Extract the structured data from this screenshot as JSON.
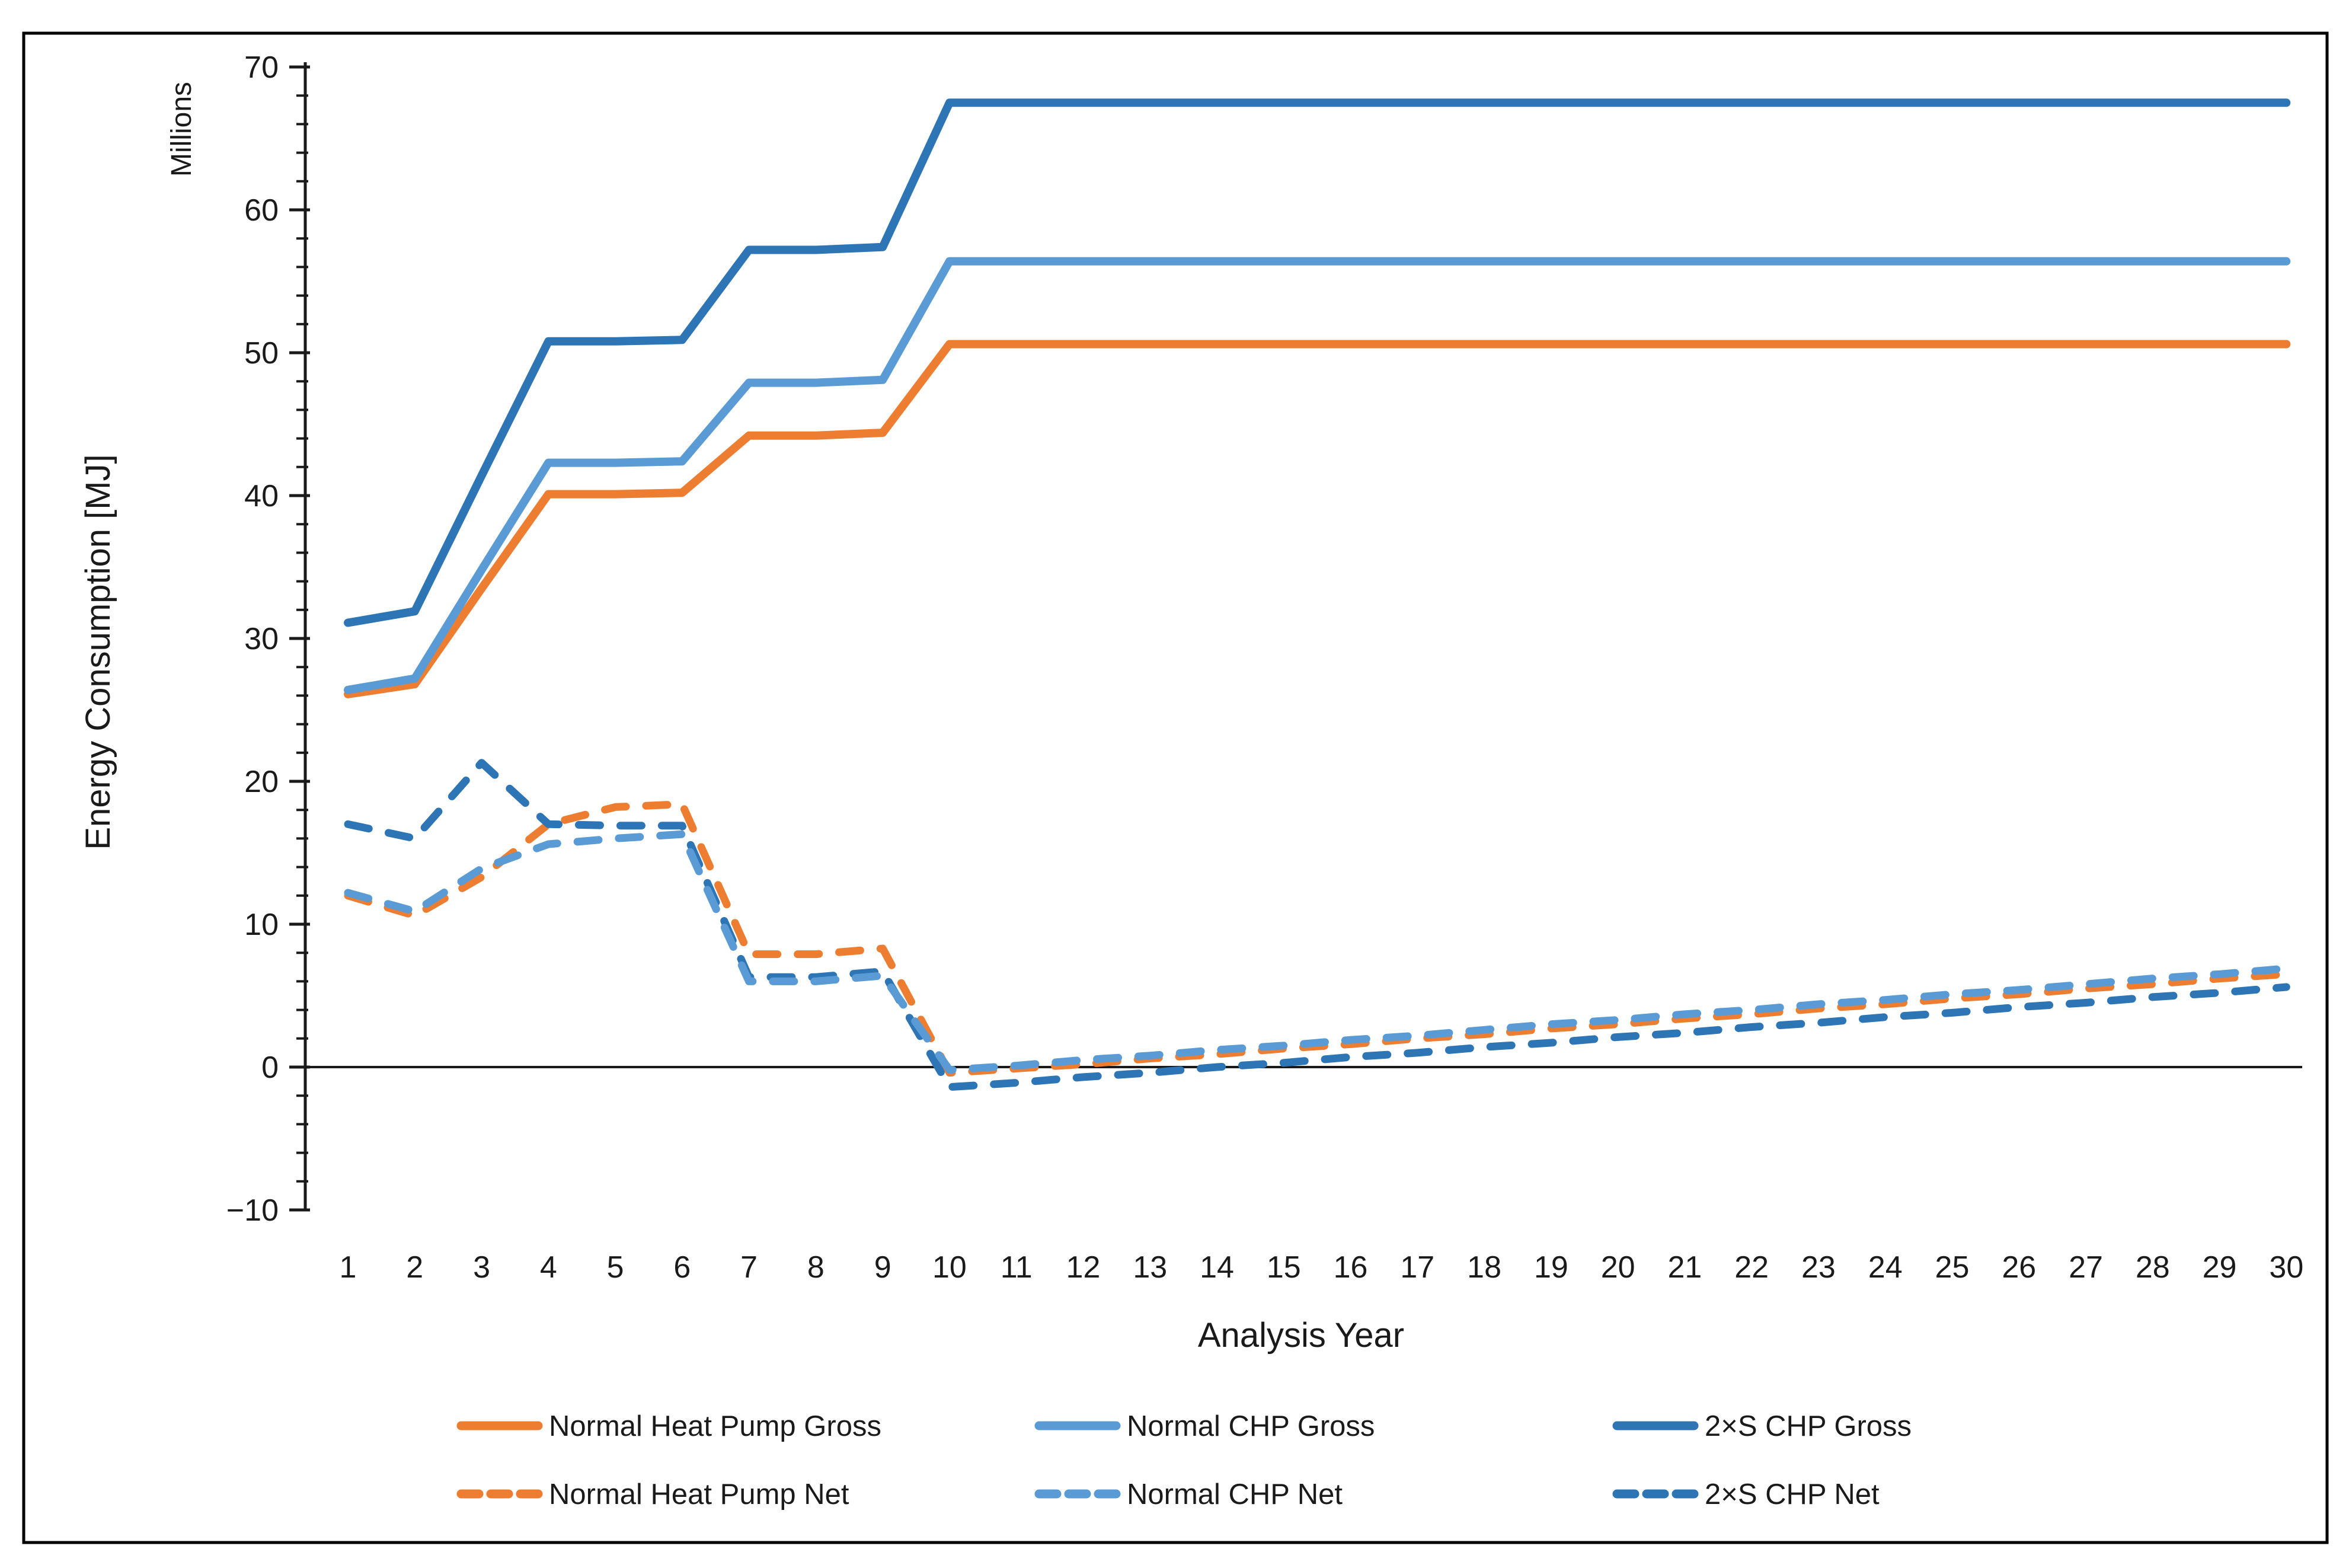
{
  "page": {
    "background": "#ffffff",
    "frame_border_color": "#000000",
    "axis_color": "#1a1a1a"
  },
  "chart_data": {
    "type": "line",
    "title": "",
    "ylabel": "Energy Consumption [MJ]",
    "units_label": "Millions",
    "xlabel": "Analysis Year",
    "ylim": [
      -10,
      70
    ],
    "y_major_ticks": [
      70,
      60,
      50,
      40,
      30,
      20,
      10,
      0,
      -10
    ],
    "y_tick_labels": [
      "70",
      "60",
      "50",
      "40",
      "30",
      "20",
      "10",
      "0",
      "−10"
    ],
    "y_minor_step": 2,
    "grid": "off",
    "zero_line": true,
    "legend_position": "bottom",
    "legend_rows": 2,
    "x": [
      1,
      2,
      3,
      4,
      5,
      6,
      7,
      8,
      9,
      10,
      11,
      12,
      13,
      14,
      15,
      16,
      17,
      18,
      19,
      20,
      21,
      22,
      23,
      24,
      25,
      26,
      27,
      28,
      29,
      30
    ],
    "x_tick_labels": [
      "1",
      "2",
      "3",
      "4",
      "5",
      "6",
      "7",
      "8",
      "9",
      "10",
      "11",
      "12",
      "13",
      "14",
      "15",
      "16",
      "17",
      "18",
      "19",
      "20",
      "21",
      "22",
      "23",
      "24",
      "25",
      "26",
      "27",
      "28",
      "29",
      "30"
    ],
    "series": [
      {
        "name": "Normal Heat Pump Gross",
        "color": "#ED7D31",
        "style": "solid",
        "values": [
          26.1,
          26.8,
          33.5,
          40.1,
          40.1,
          40.2,
          44.2,
          44.2,
          44.4,
          50.6,
          50.6,
          50.6,
          50.6,
          50.6,
          50.6,
          50.6,
          50.6,
          50.6,
          50.6,
          50.6,
          50.6,
          50.6,
          50.6,
          50.6,
          50.6,
          50.6,
          50.6,
          50.6,
          50.6,
          50.6
        ]
      },
      {
        "name": "Normal CHP Gross",
        "color": "#5B9BD5",
        "style": "solid",
        "values": [
          26.4,
          27.2,
          34.8,
          42.3,
          42.3,
          42.4,
          47.9,
          47.9,
          48.1,
          56.4,
          56.4,
          56.4,
          56.4,
          56.4,
          56.4,
          56.4,
          56.4,
          56.4,
          56.4,
          56.4,
          56.4,
          56.4,
          56.4,
          56.4,
          56.4,
          56.4,
          56.4,
          56.4,
          56.4,
          56.4
        ]
      },
      {
        "name": "2×S CHP Gross",
        "color": "#2E75B6",
        "style": "solid",
        "values": [
          31.1,
          31.9,
          41.4,
          50.8,
          50.8,
          50.9,
          57.2,
          57.2,
          57.4,
          67.5,
          67.5,
          67.5,
          67.5,
          67.5,
          67.5,
          67.5,
          67.5,
          67.5,
          67.5,
          67.5,
          67.5,
          67.5,
          67.5,
          67.5,
          67.5,
          67.5,
          67.5,
          67.5,
          67.5,
          67.5
        ]
      },
      {
        "name": "Normal Heat Pump Net",
        "color": "#ED7D31",
        "style": "dashed",
        "values": [
          12.0,
          10.6,
          13.3,
          17.0,
          18.2,
          18.4,
          7.9,
          7.9,
          8.3,
          -0.4,
          -0.1,
          0.2,
          0.6,
          0.9,
          1.3,
          1.6,
          2.0,
          2.3,
          2.7,
          3.0,
          3.4,
          3.7,
          4.1,
          4.4,
          4.8,
          5.1,
          5.5,
          5.8,
          6.2,
          6.5
        ]
      },
      {
        "name": "Normal CHP Net",
        "color": "#5B9BD5",
        "style": "dashed",
        "values": [
          12.2,
          10.9,
          13.9,
          15.6,
          16.0,
          16.3,
          6.0,
          6.0,
          6.4,
          -0.2,
          0.1,
          0.5,
          0.8,
          1.2,
          1.5,
          1.9,
          2.2,
          2.6,
          3.0,
          3.3,
          3.7,
          4.0,
          4.4,
          4.7,
          5.1,
          5.4,
          5.8,
          6.2,
          6.5,
          6.9
        ]
      },
      {
        "name": "2×S CHP Net",
        "color": "#2E75B6",
        "style": "dashed",
        "values": [
          17.0,
          16.0,
          21.3,
          17.0,
          16.9,
          16.9,
          6.3,
          6.3,
          6.7,
          -1.4,
          -1.1,
          -0.7,
          -0.4,
          0.0,
          0.3,
          0.7,
          1.0,
          1.4,
          1.7,
          2.1,
          2.4,
          2.8,
          3.1,
          3.5,
          3.8,
          4.2,
          4.5,
          4.9,
          5.2,
          5.6
        ]
      }
    ]
  }
}
